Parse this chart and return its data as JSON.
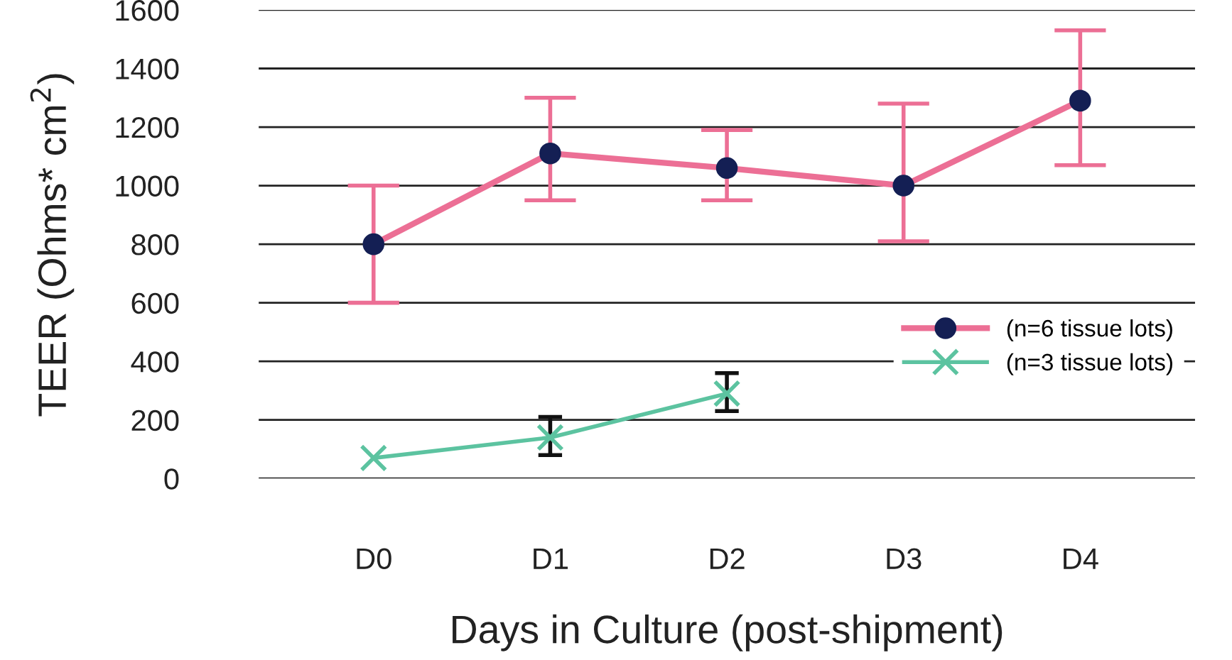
{
  "chart_data": {
    "type": "line",
    "xlabel": "Days in Culture (post-shipment)",
    "ylabel": "TEER (Ohms* cm$^{2}$)",
    "categories": [
      "D0",
      "D1",
      "D2",
      "D3",
      "D4"
    ],
    "series": [
      {
        "name": "(n=6 tissue lots)",
        "color": "#ec6f95",
        "marker": "circle",
        "values": [
          800,
          1110,
          1060,
          1000,
          1290
        ],
        "errors": [
          [
            600,
            1000
          ],
          [
            950,
            1300
          ],
          [
            950,
            1190
          ],
          [
            810,
            1280
          ],
          [
            1070,
            1530
          ]
        ]
      },
      {
        "name": "(n=3 tissue lots)",
        "color": "#5cc3a0",
        "marker": "cross",
        "values": [
          70,
          140,
          290,
          null,
          null
        ],
        "errors": [
          null,
          [
            80,
            210
          ],
          [
            230,
            360
          ],
          null,
          null
        ]
      }
    ],
    "ylim": [
      0,
      1600
    ],
    "yticks": [
      0,
      200,
      400,
      600,
      800,
      1000,
      1200,
      1400,
      1600
    ],
    "grid": "y",
    "legend": "right"
  }
}
